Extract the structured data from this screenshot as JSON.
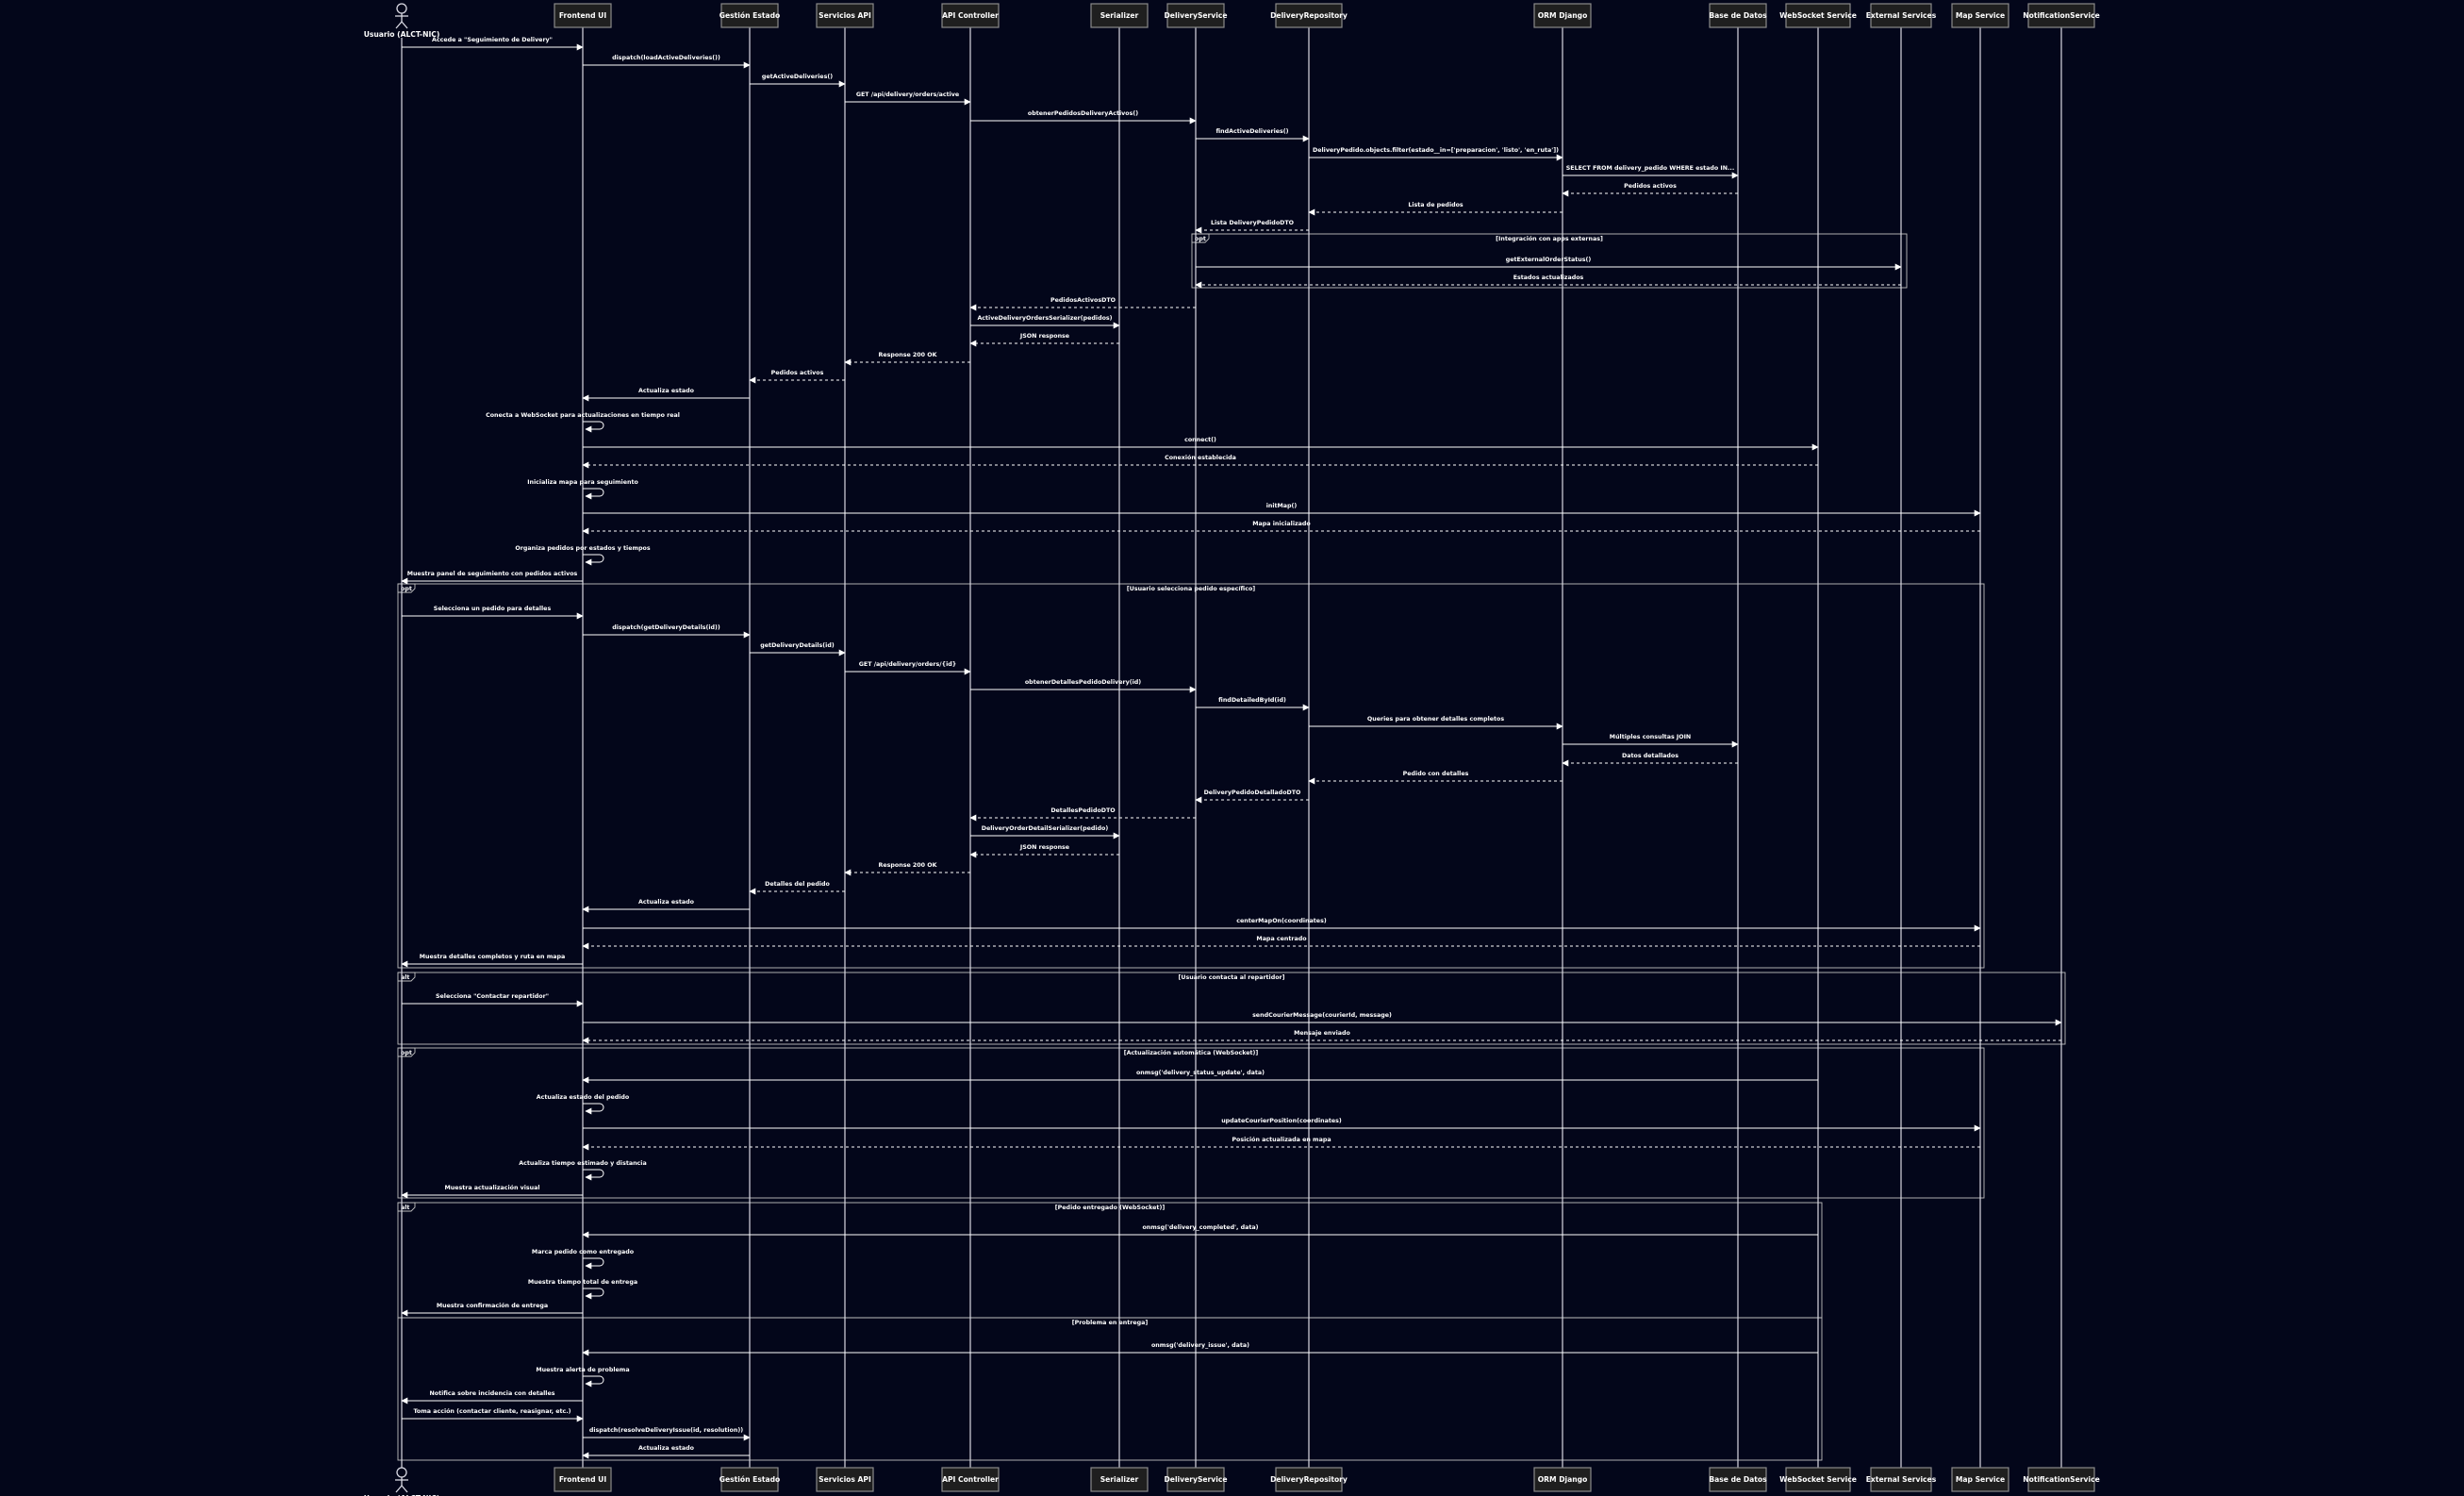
{
  "participants": [
    {
      "id": "user",
      "label": "Usuario (ALCT-NIC)",
      "actor": true
    },
    {
      "id": "fe",
      "label": "Frontend UI"
    },
    {
      "id": "ge",
      "label": "Gestión Estado"
    },
    {
      "id": "sa",
      "label": "Servicios API"
    },
    {
      "id": "api",
      "label": "API Controller"
    },
    {
      "id": "ser",
      "label": "Serializer"
    },
    {
      "id": "ds",
      "label": "DeliveryService"
    },
    {
      "id": "dr",
      "label": "DeliveryRepository"
    },
    {
      "id": "orm",
      "label": "ORM Django"
    },
    {
      "id": "db",
      "label": "Base de Datos"
    },
    {
      "id": "ws",
      "label": "WebSocket Service"
    },
    {
      "id": "ext",
      "label": "External Services"
    },
    {
      "id": "map",
      "label": "Map Service"
    },
    {
      "id": "ns",
      "label": "NotificationService"
    }
  ],
  "messages": [
    {
      "from": "user",
      "to": "fe",
      "text": "Accede a \"Seguimiento de Delivery\"",
      "dashed": false
    },
    {
      "from": "fe",
      "to": "ge",
      "text": "dispatch(loadActiveDeliveries())",
      "dashed": false
    },
    {
      "from": "ge",
      "to": "sa",
      "text": "getActiveDeliveries()",
      "dashed": false
    },
    {
      "from": "sa",
      "to": "api",
      "text": "GET /api/delivery/orders/active",
      "dashed": false
    },
    {
      "from": "api",
      "to": "ds",
      "text": "obtenerPedidosDeliveryActivos()",
      "dashed": false
    },
    {
      "from": "ds",
      "to": "dr",
      "text": "findActiveDeliveries()",
      "dashed": false
    },
    {
      "from": "dr",
      "to": "orm",
      "text": "DeliveryPedido.objects.filter(estado__in=['preparacion', 'listo', 'en_ruta'])",
      "dashed": false
    },
    {
      "from": "orm",
      "to": "db",
      "text": "SELECT FROM delivery_pedido WHERE estado IN...",
      "dashed": false
    },
    {
      "from": "db",
      "to": "orm",
      "text": "Pedidos activos",
      "dashed": true
    },
    {
      "from": "orm",
      "to": "dr",
      "text": "Lista de pedidos",
      "dashed": true
    },
    {
      "from": "dr",
      "to": "ds",
      "text": "Lista DeliveryPedidoDTO",
      "dashed": true
    },
    {
      "from": "ds",
      "to": "ext",
      "text": "getExternalOrderStatus()",
      "dashed": false
    },
    {
      "from": "ext",
      "to": "ds",
      "text": "Estados actualizados",
      "dashed": true
    },
    {
      "from": "ds",
      "to": "api",
      "text": "PedidosActivosDTO",
      "dashed": true
    },
    {
      "from": "api",
      "to": "ser",
      "text": "ActiveDeliveryOrdersSerializer(pedidos)",
      "dashed": false
    },
    {
      "from": "ser",
      "to": "api",
      "text": "JSON response",
      "dashed": true
    },
    {
      "from": "api",
      "to": "sa",
      "text": "Response 200 OK",
      "dashed": true
    },
    {
      "from": "sa",
      "to": "ge",
      "text": "Pedidos activos",
      "dashed": true
    },
    {
      "from": "ge",
      "to": "fe",
      "text": "Actualiza estado",
      "dashed": false
    },
    {
      "self": "fe",
      "text": "Conecta a WebSocket para actualizaciones en tiempo real"
    },
    {
      "from": "fe",
      "to": "ws",
      "text": "connect()",
      "dashed": false
    },
    {
      "from": "ws",
      "to": "fe",
      "text": "Conexión establecida",
      "dashed": true
    },
    {
      "self": "fe",
      "text": "Inicializa mapa para seguimiento"
    },
    {
      "from": "fe",
      "to": "map",
      "text": "initMap()",
      "dashed": false
    },
    {
      "from": "map",
      "to": "fe",
      "text": "Mapa inicializado",
      "dashed": true
    },
    {
      "self": "fe",
      "text": "Organiza pedidos por estados y tiempos"
    },
    {
      "from": "fe",
      "to": "user",
      "text": "Muestra panel de seguimiento con pedidos activos",
      "dashed": false
    },
    {
      "from": "user",
      "to": "fe",
      "text": "Selecciona un pedido para detalles",
      "dashed": false
    },
    {
      "from": "fe",
      "to": "ge",
      "text": "dispatch(getDeliveryDetails(id))",
      "dashed": false
    },
    {
      "from": "ge",
      "to": "sa",
      "text": "getDeliveryDetails(id)",
      "dashed": false
    },
    {
      "from": "sa",
      "to": "api",
      "text": "GET /api/delivery/orders/{id}",
      "dashed": false
    },
    {
      "from": "api",
      "to": "ds",
      "text": "obtenerDetallesPedidoDelivery(id)",
      "dashed": false
    },
    {
      "from": "ds",
      "to": "dr",
      "text": "findDetailedById(id)",
      "dashed": false
    },
    {
      "from": "dr",
      "to": "orm",
      "text": "Queries para obtener detalles completos",
      "dashed": false
    },
    {
      "from": "orm",
      "to": "db",
      "text": "Múltiples consultas JOIN",
      "dashed": false
    },
    {
      "from": "db",
      "to": "orm",
      "text": "Datos detallados",
      "dashed": true
    },
    {
      "from": "orm",
      "to": "dr",
      "text": "Pedido con detalles",
      "dashed": true
    },
    {
      "from": "dr",
      "to": "ds",
      "text": "DeliveryPedidoDetalladoDTO",
      "dashed": true
    },
    {
      "from": "ds",
      "to": "api",
      "text": "DetallesPedidoDTO",
      "dashed": true
    },
    {
      "from": "api",
      "to": "ser",
      "text": "DeliveryOrderDetailSerializer(pedido)",
      "dashed": false
    },
    {
      "from": "ser",
      "to": "api",
      "text": "JSON response",
      "dashed": true
    },
    {
      "from": "api",
      "to": "sa",
      "text": "Response 200 OK",
      "dashed": true
    },
    {
      "from": "sa",
      "to": "ge",
      "text": "Detalles del pedido",
      "dashed": true
    },
    {
      "from": "ge",
      "to": "fe",
      "text": "Actualiza estado",
      "dashed": false
    },
    {
      "from": "fe",
      "to": "map",
      "text": "centerMapOn(coordinates)",
      "dashed": false
    },
    {
      "from": "map",
      "to": "fe",
      "text": "Mapa centrado",
      "dashed": true
    },
    {
      "from": "fe",
      "to": "user",
      "text": "Muestra detalles completos y ruta en mapa",
      "dashed": false
    },
    {
      "from": "user",
      "to": "fe",
      "text": "Selecciona \"Contactar repartidor\"",
      "dashed": false
    },
    {
      "from": "fe",
      "to": "ns",
      "text": "sendCourierMessage(courierId, message)",
      "dashed": false
    },
    {
      "from": "ns",
      "to": "fe",
      "text": "Mensaje enviado",
      "dashed": true
    },
    {
      "from": "ws",
      "to": "fe",
      "text": "onmsg('delivery_status_update', data)",
      "dashed": false
    },
    {
      "self": "fe",
      "text": "Actualiza estado del pedido"
    },
    {
      "from": "fe",
      "to": "map",
      "text": "updateCourierPosition(coordinates)",
      "dashed": false
    },
    {
      "from": "map",
      "to": "fe",
      "text": "Posición actualizada en mapa",
      "dashed": true
    },
    {
      "self": "fe",
      "text": "Actualiza tiempo estimado y distancia"
    },
    {
      "from": "fe",
      "to": "user",
      "text": "Muestra actualización visual",
      "dashed": false
    },
    {
      "from": "ws",
      "to": "fe",
      "text": "onmsg('delivery_completed', data)",
      "dashed": false
    },
    {
      "self": "fe",
      "text": "Marca pedido como entregado"
    },
    {
      "self": "fe",
      "text": "Muestra tiempo total de entrega"
    },
    {
      "from": "fe",
      "to": "user",
      "text": "Muestra confirmación de entrega",
      "dashed": false
    },
    {
      "from": "ws",
      "to": "fe",
      "text": "onmsg('delivery_issue', data)",
      "dashed": false
    },
    {
      "self": "fe",
      "text": "Muestra alerta de problema"
    },
    {
      "from": "fe",
      "to": "user",
      "text": "Notifica sobre incidencia con detalles",
      "dashed": false
    },
    {
      "from": "user",
      "to": "fe",
      "text": "Toma acción (contactar cliente, reasignar, etc.)",
      "dashed": false
    },
    {
      "from": "fe",
      "to": "ge",
      "text": "dispatch(resolveDeliveryIssue(id, resolution))",
      "dashed": false
    },
    {
      "from": "ge",
      "to": "fe",
      "text": "Actualiza estado",
      "dashed": false
    }
  ],
  "fragments": [
    {
      "tag": "opt",
      "title": "[Integración con apps externas]"
    },
    {
      "tag": "opt",
      "title": "[Usuario selecciona pedido específico]"
    },
    {
      "tag": "alt",
      "title": "[Usuario contacta al repartidor]"
    },
    {
      "tag": "opt",
      "title": "[Actualización automática (WebSocket)]"
    },
    {
      "tag": "alt",
      "title": "[Pedido entregado (WebSocket)]"
    },
    {
      "tag": "",
      "title": "[Problema en entrega]"
    }
  ]
}
